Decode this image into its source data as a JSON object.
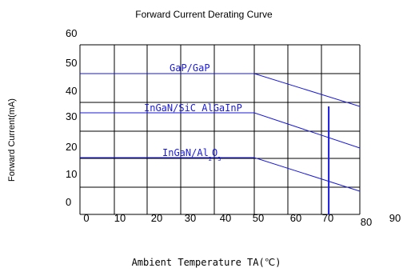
{
  "chart_data": {
    "type": "line",
    "title": "Forward Current Derating Curve",
    "xlabel": "Ambient Temperature TA(℃)",
    "ylabel": "Forward Current(mA)",
    "xlim": [
      0,
      90
    ],
    "ylim": [
      0,
      60
    ],
    "x_ticks": [
      "0",
      "10",
      "20",
      "30",
      "40",
      "50",
      "60",
      "70",
      "80",
      "90"
    ],
    "y_ticks": [
      "0",
      "10",
      "20",
      "30",
      "40",
      "50",
      "60"
    ],
    "grid": true,
    "series": [
      {
        "name": "GaP/GaP",
        "x": [
          0,
          50,
          80
        ],
        "y": [
          47,
          47,
          36
        ]
      },
      {
        "name": "InGaN/SiC AlGaInP",
        "x": [
          0,
          50,
          80
        ],
        "y": [
          33,
          33,
          20
        ]
      },
      {
        "name": "InGaN/Al2O3",
        "x": [
          0,
          50,
          80
        ],
        "y": [
          19,
          19,
          6
        ]
      }
    ],
    "series_color": "#1a1adc"
  }
}
